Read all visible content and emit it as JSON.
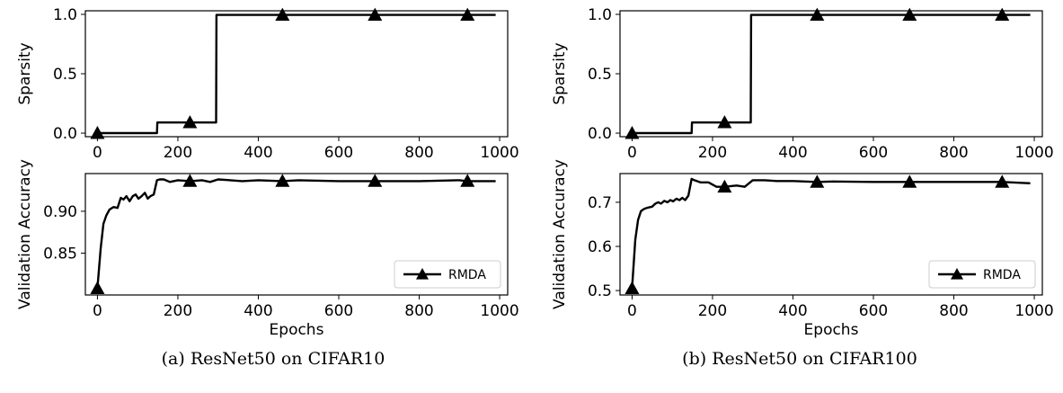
{
  "captions": [
    "(a) ResNet50 on CIFAR10",
    "(b) ResNet50 on CIFAR100"
  ],
  "colors": {
    "line": "#000000",
    "axis": "#000000",
    "background": "#ffffff"
  },
  "chart_data": [
    {
      "panel": "a-top",
      "type": "line",
      "title": "",
      "xlabel": "",
      "ylabel": "Sparsity",
      "xlim": [
        -30,
        1020
      ],
      "ylim": [
        -0.03,
        1.03
      ],
      "xticks": [
        0,
        200,
        400,
        600,
        800,
        1000
      ],
      "yticks": [
        0.0,
        0.5,
        1.0
      ],
      "ytick_labels": [
        "0.0",
        "0.5",
        "1.0"
      ],
      "grid": false,
      "series": [
        {
          "marker": "triangle",
          "markers_at": [
            0,
            230,
            460,
            690,
            920
          ],
          "x": [
            0,
            148,
            149,
            295,
            296,
            990
          ],
          "y": [
            0.0,
            0.0,
            0.09,
            0.09,
            0.995,
            0.995
          ]
        }
      ]
    },
    {
      "panel": "a-bottom",
      "type": "line",
      "title": "",
      "xlabel": "Epochs",
      "ylabel": "Validation Accuracy",
      "xlim": [
        -30,
        1020
      ],
      "ylim": [
        0.8,
        0.945
      ],
      "xticks": [
        0,
        200,
        400,
        600,
        800,
        1000
      ],
      "yticks": [
        0.85,
        0.9
      ],
      "ytick_labels": [
        "0.85",
        "0.90"
      ],
      "grid": false,
      "legend": {
        "position": "lower-right",
        "entries": [
          "RMDA"
        ]
      },
      "series": [
        {
          "name": "RMDA",
          "marker": "triangle",
          "markers_at": [
            0,
            230,
            460,
            690,
            920
          ],
          "x": [
            0,
            8,
            15,
            22,
            30,
            40,
            50,
            58,
            65,
            72,
            80,
            88,
            95,
            102,
            110,
            118,
            125,
            132,
            140,
            148,
            155,
            165,
            180,
            200,
            230,
            260,
            280,
            300,
            330,
            360,
            400,
            460,
            500,
            600,
            690,
            800,
            900,
            920,
            990
          ],
          "y": [
            0.808,
            0.855,
            0.885,
            0.895,
            0.902,
            0.905,
            0.904,
            0.916,
            0.914,
            0.918,
            0.912,
            0.918,
            0.92,
            0.915,
            0.918,
            0.922,
            0.915,
            0.918,
            0.92,
            0.937,
            0.938,
            0.938,
            0.935,
            0.937,
            0.936,
            0.937,
            0.935,
            0.938,
            0.937,
            0.936,
            0.937,
            0.936,
            0.937,
            0.936,
            0.936,
            0.936,
            0.937,
            0.936,
            0.936
          ]
        }
      ]
    },
    {
      "panel": "b-top",
      "type": "line",
      "title": "",
      "xlabel": "",
      "ylabel": "Sparsity",
      "xlim": [
        -30,
        1020
      ],
      "ylim": [
        -0.03,
        1.03
      ],
      "xticks": [
        0,
        200,
        400,
        600,
        800,
        1000
      ],
      "yticks": [
        0.0,
        0.5,
        1.0
      ],
      "ytick_labels": [
        "0.0",
        "0.5",
        "1.0"
      ],
      "grid": false,
      "series": [
        {
          "marker": "triangle",
          "markers_at": [
            0,
            230,
            460,
            690,
            920
          ],
          "x": [
            0,
            148,
            149,
            295,
            296,
            990
          ],
          "y": [
            0.0,
            0.0,
            0.09,
            0.09,
            0.995,
            0.995
          ]
        }
      ]
    },
    {
      "panel": "b-bottom",
      "type": "line",
      "title": "",
      "xlabel": "Epochs",
      "ylabel": "Validation Accuracy",
      "xlim": [
        -30,
        1020
      ],
      "ylim": [
        0.49,
        0.765
      ],
      "xticks": [
        0,
        200,
        400,
        600,
        800,
        1000
      ],
      "yticks": [
        0.5,
        0.6,
        0.7
      ],
      "ytick_labels": [
        "0.5",
        "0.6",
        "0.7"
      ],
      "grid": false,
      "legend": {
        "position": "lower-right",
        "entries": [
          "RMDA"
        ]
      },
      "series": [
        {
          "name": "RMDA",
          "marker": "triangle",
          "markers_at": [
            0,
            230,
            460,
            690,
            920
          ],
          "x": [
            0,
            8,
            15,
            22,
            30,
            40,
            50,
            58,
            65,
            72,
            80,
            88,
            95,
            102,
            110,
            118,
            125,
            132,
            140,
            148,
            155,
            170,
            190,
            210,
            230,
            260,
            280,
            300,
            330,
            360,
            400,
            460,
            500,
            600,
            690,
            800,
            900,
            920,
            990
          ],
          "y": [
            0.505,
            0.615,
            0.66,
            0.68,
            0.685,
            0.688,
            0.69,
            0.697,
            0.7,
            0.697,
            0.703,
            0.7,
            0.705,
            0.702,
            0.708,
            0.705,
            0.71,
            0.705,
            0.715,
            0.753,
            0.75,
            0.745,
            0.745,
            0.735,
            0.735,
            0.738,
            0.735,
            0.75,
            0.75,
            0.748,
            0.748,
            0.746,
            0.747,
            0.746,
            0.746,
            0.746,
            0.746,
            0.746,
            0.743
          ]
        }
      ]
    }
  ]
}
